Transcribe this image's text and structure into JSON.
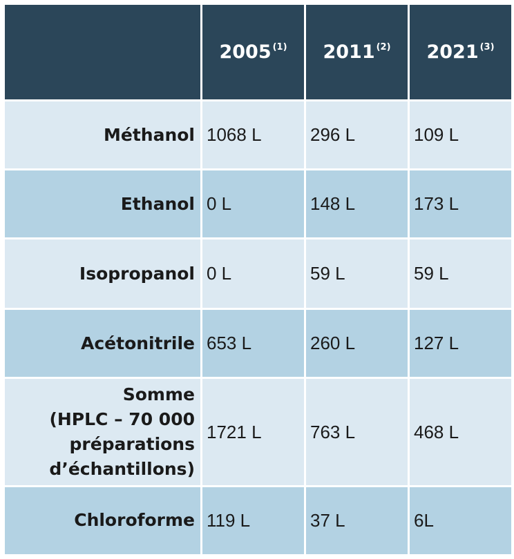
{
  "table": {
    "header": {
      "corner": "",
      "years": [
        {
          "year": "2005",
          "note": "(1)"
        },
        {
          "year": "2011",
          "note": "(2)"
        },
        {
          "year": "2021",
          "note": "(3)"
        }
      ]
    },
    "rows": [
      {
        "label": "Méthanol",
        "values": [
          "1068 L",
          "296 L",
          "109 L"
        ]
      },
      {
        "label": "Ethanol",
        "values": [
          "0 L",
          "148 L",
          "173 L"
        ]
      },
      {
        "label": "Isopropanol",
        "values": [
          "0 L",
          "59 L",
          "59 L"
        ]
      },
      {
        "label": "Acétonitrile",
        "values": [
          "653 L",
          "260 L",
          "127 L"
        ]
      },
      {
        "label_lines": [
          "Somme",
          "(HPLC – 70 000",
          "préparations",
          "d’échantillons)"
        ],
        "values": [
          "1721 L",
          "763 L",
          "468 L"
        ]
      },
      {
        "label": "Chloroforme",
        "values": [
          "119 L",
          "37 L",
          "6L"
        ]
      }
    ]
  },
  "colors": {
    "header_bg": "#2b4659",
    "row_light": "#dce9f2",
    "row_dark": "#b3d2e3",
    "text": "#1a1a1a"
  }
}
